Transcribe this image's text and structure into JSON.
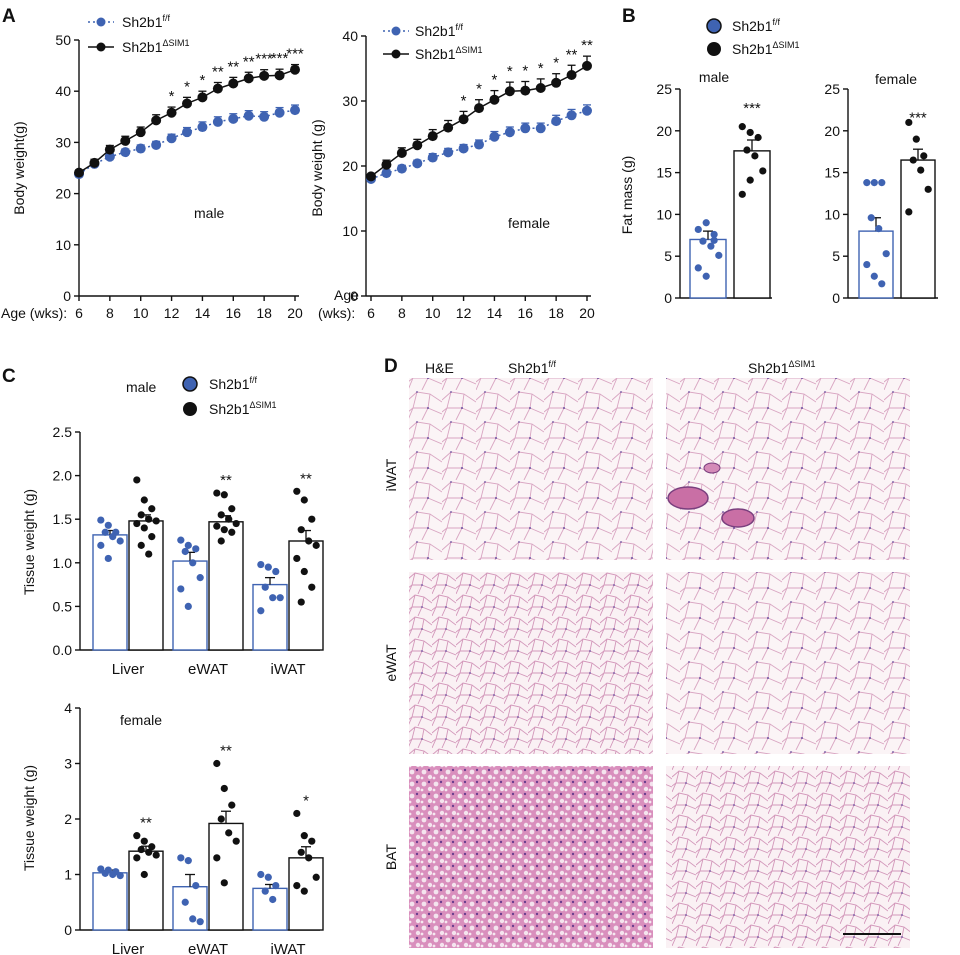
{
  "colors": {
    "ctrl": "#3f63b2",
    "ko": "#111111",
    "bar_ctrl_fill": "#ffffff",
    "bar_ko_fill": "#ffffff"
  },
  "legend": {
    "ctrl": "Sh2b1",
    "ctrl_sup": "f/f",
    "ko": "Sh2b1",
    "ko_sup": "ΔSIM1"
  },
  "panel_labels": {
    "a": "A",
    "b": "B",
    "c": "C",
    "d": "D"
  },
  "chart_data": [
    {
      "id": "A_male",
      "type": "line",
      "ylabel": "Body weight(g)",
      "xlabel": "Age (wks):",
      "annotation": "male",
      "ylim": [
        0,
        50
      ],
      "yticks": [
        "0",
        "10",
        "20",
        "30",
        "40",
        "50"
      ],
      "xlim": [
        6,
        20
      ],
      "xticks": [
        "6",
        "8",
        "10",
        "12",
        "14",
        "16",
        "18",
        "20"
      ],
      "x": [
        6,
        7,
        8,
        9,
        10,
        11,
        12,
        13,
        14,
        15,
        16,
        17,
        18,
        19,
        20
      ],
      "series": [
        {
          "name": "Sh2b1 f/f",
          "values": [
            23.8,
            25.8,
            27.2,
            28.1,
            28.8,
            29.5,
            30.8,
            32.0,
            33.0,
            34.0,
            34.6,
            35.2,
            35.0,
            35.8,
            36.3
          ],
          "err": [
            0.6,
            0.6,
            0.6,
            0.6,
            0.7,
            0.7,
            0.8,
            0.9,
            1.0,
            1.0,
            1.0,
            1.0,
            1.0,
            1.0,
            1.0
          ]
        },
        {
          "name": "Sh2b1 ΔSIM1",
          "values": [
            24.1,
            26.0,
            28.6,
            30.3,
            32.0,
            34.3,
            35.8,
            37.6,
            38.8,
            40.5,
            41.5,
            42.5,
            43.0,
            43.1,
            44.2
          ],
          "err": [
            0.7,
            0.7,
            0.8,
            0.9,
            1.0,
            1.1,
            1.1,
            1.2,
            1.2,
            1.2,
            1.2,
            1.2,
            1.2,
            1.2,
            1.0
          ]
        }
      ],
      "sig": [
        {
          "x": 12,
          "t": "*"
        },
        {
          "x": 13,
          "t": "*"
        },
        {
          "x": 14,
          "t": "*"
        },
        {
          "x": 15,
          "t": "**"
        },
        {
          "x": 16,
          "t": "**"
        },
        {
          "x": 17,
          "t": "**"
        },
        {
          "x": 18,
          "t": "***"
        },
        {
          "x": 19,
          "t": "***"
        },
        {
          "x": 20,
          "t": "***"
        }
      ]
    },
    {
      "id": "A_female",
      "type": "line",
      "ylabel": "Body weight (g)",
      "xlabel": "Age",
      "xlabel2": "(wks):",
      "annotation": "female",
      "ylim": [
        0,
        40
      ],
      "yticks": [
        "0",
        "10",
        "20",
        "30",
        "40"
      ],
      "xlim": [
        6,
        20
      ],
      "xticks": [
        "6",
        "8",
        "10",
        "12",
        "14",
        "16",
        "18",
        "20"
      ],
      "x": [
        6,
        7,
        8,
        9,
        10,
        11,
        12,
        13,
        14,
        15,
        16,
        17,
        18,
        19,
        20
      ],
      "series": [
        {
          "name": "Sh2b1 f/f",
          "values": [
            18.0,
            18.9,
            19.6,
            20.4,
            21.3,
            22.1,
            22.7,
            23.3,
            24.5,
            25.2,
            25.8,
            25.8,
            26.9,
            27.8,
            28.5
          ],
          "err": [
            0.5,
            0.5,
            0.5,
            0.5,
            0.6,
            0.6,
            0.6,
            0.7,
            0.8,
            0.8,
            0.8,
            0.8,
            0.9,
            0.9,
            0.9
          ]
        },
        {
          "name": "Sh2b1 ΔSIM1",
          "values": [
            18.4,
            20.2,
            22.0,
            23.2,
            24.6,
            25.9,
            27.2,
            28.9,
            30.2,
            31.5,
            31.6,
            32.0,
            32.8,
            34.0,
            35.4
          ],
          "err": [
            0.6,
            0.7,
            0.8,
            0.9,
            1.0,
            1.1,
            1.2,
            1.3,
            1.4,
            1.4,
            1.4,
            1.4,
            1.4,
            1.5,
            1.5
          ]
        }
      ],
      "sig": [
        {
          "x": 12,
          "t": "*"
        },
        {
          "x": 13,
          "t": "*"
        },
        {
          "x": 14,
          "t": "*"
        },
        {
          "x": 15,
          "t": "*"
        },
        {
          "x": 16,
          "t": "*"
        },
        {
          "x": 17,
          "t": "*"
        },
        {
          "x": 18,
          "t": "*"
        },
        {
          "x": 19,
          "t": "**"
        },
        {
          "x": 20,
          "t": "**"
        }
      ]
    },
    {
      "id": "B_male",
      "type": "bar",
      "title": "male",
      "ylabel": "Fat mass (g)",
      "ylim": [
        0,
        25
      ],
      "yticks": [
        "0",
        "5",
        "10",
        "15",
        "20",
        "25"
      ],
      "categories": [
        "Sh2b1 f/f",
        "Sh2b1 ΔSIM1"
      ],
      "values": [
        7.0,
        17.6
      ],
      "err": [
        1.0,
        1.3
      ],
      "points": [
        [
          8.2,
          9.0,
          6.9,
          6.8,
          6.2,
          5.1,
          3.6,
          2.6,
          7.6
        ],
        [
          20.5,
          19.8,
          19.2,
          17.7,
          17.0,
          15.2,
          12.4,
          14.1
        ]
      ],
      "sig": [
        "",
        "***"
      ]
    },
    {
      "id": "B_female",
      "type": "bar",
      "title": "female",
      "ylabel": "",
      "ylim": [
        0,
        25
      ],
      "yticks": [
        "0",
        "5",
        "10",
        "15",
        "20",
        "25"
      ],
      "categories": [
        "Sh2b1 f/f",
        "Sh2b1 ΔSIM1"
      ],
      "values": [
        8.0,
        16.5
      ],
      "err": [
        1.6,
        1.3
      ],
      "points": [
        [
          13.8,
          13.8,
          13.8,
          9.6,
          8.3,
          5.3,
          4.0,
          2.6,
          1.7
        ],
        [
          21.0,
          19.0,
          17.0,
          16.5,
          15.3,
          13.0,
          10.3
        ]
      ],
      "sig": [
        "",
        "***"
      ]
    },
    {
      "id": "C_male",
      "type": "bar",
      "title": "male",
      "ylabel": "Tissue weight (g)",
      "ylim": [
        0,
        2.5
      ],
      "yticks": [
        "0.0",
        "0.5",
        "1.0",
        "1.5",
        "2.0",
        "2.5"
      ],
      "categories": [
        "Liver",
        "eWAT",
        "iWAT"
      ],
      "series": [
        {
          "name": "Sh2b1 f/f",
          "values": [
            1.32,
            1.02,
            0.75
          ],
          "err": [
            0.05,
            0.1,
            0.08
          ],
          "points": [
            [
              1.49,
              1.43,
              1.35,
              1.35,
              1.3,
              1.25,
              1.2,
              1.05
            ],
            [
              1.26,
              1.2,
              1.16,
              1.13,
              1.0,
              0.83,
              0.7,
              0.5
            ],
            [
              0.98,
              0.95,
              0.9,
              0.72,
              0.6,
              0.6,
              0.45
            ]
          ]
        },
        {
          "name": "Sh2b1 ΔSIM1",
          "values": [
            1.48,
            1.47,
            1.25
          ],
          "err": [
            0.07,
            0.07,
            0.12
          ],
          "points": [
            [
              1.95,
              1.72,
              1.62,
              1.55,
              1.5,
              1.48,
              1.45,
              1.4,
              1.3,
              1.2,
              1.1
            ],
            [
              1.8,
              1.78,
              1.62,
              1.55,
              1.5,
              1.45,
              1.42,
              1.38,
              1.35,
              1.25
            ],
            [
              1.82,
              1.72,
              1.5,
              1.38,
              1.25,
              1.2,
              1.05,
              0.9,
              0.72,
              0.55
            ]
          ]
        }
      ],
      "sig": [
        "",
        "**",
        "**"
      ]
    },
    {
      "id": "C_female",
      "type": "bar",
      "title": "female",
      "ylabel": "Tissue weight (g)",
      "ylim": [
        0,
        4
      ],
      "yticks": [
        "0",
        "1",
        "2",
        "3",
        "4"
      ],
      "categories": [
        "Liver",
        "eWAT",
        "iWAT"
      ],
      "series": [
        {
          "name": "Sh2b1 f/f",
          "values": [
            1.03,
            0.78,
            0.75
          ],
          "err": [
            0.05,
            0.22,
            0.07
          ],
          "points": [
            [
              1.1,
              1.08,
              1.05,
              1.02,
              1.0,
              0.98
            ],
            [
              1.3,
              1.25,
              0.8,
              0.5,
              0.2,
              0.15
            ],
            [
              1.0,
              0.95,
              0.8,
              0.7,
              0.55
            ]
          ]
        },
        {
          "name": "Sh2b1 ΔSIM1",
          "values": [
            1.42,
            1.92,
            1.3
          ],
          "err": [
            0.09,
            0.22,
            0.2
          ],
          "points": [
            [
              1.7,
              1.6,
              1.5,
              1.45,
              1.4,
              1.35,
              1.3,
              1.0
            ],
            [
              3.0,
              2.55,
              2.25,
              2.0,
              1.75,
              1.6,
              1.3,
              0.85
            ],
            [
              2.1,
              1.7,
              1.6,
              1.4,
              1.3,
              0.95,
              0.8,
              0.7
            ]
          ]
        }
      ],
      "sig": [
        "**",
        "**",
        "*"
      ]
    }
  ],
  "histology": {
    "stain": "H&E",
    "col_ctrl": "Sh2b1",
    "col_ctrl_sup": "f/f",
    "col_ko": "Sh2b1",
    "col_ko_sup": "ΔSIM1",
    "rows": [
      "iWAT",
      "eWAT",
      "BAT"
    ]
  }
}
